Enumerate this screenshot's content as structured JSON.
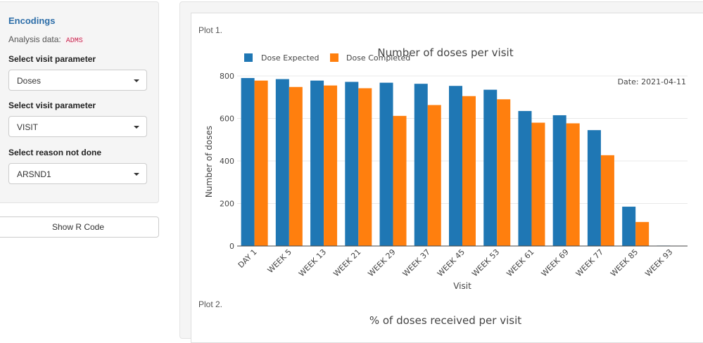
{
  "sidebar": {
    "title": "Encodings",
    "analysis_label": "Analysis data:",
    "analysis_value": "ADMS",
    "fields": [
      {
        "label": "Select visit parameter",
        "value": "Doses"
      },
      {
        "label": "Select visit parameter",
        "value": "VISIT"
      },
      {
        "label": "Select reason not done",
        "value": "ARSND1"
      }
    ],
    "show_code_label": "Show R Code"
  },
  "plots": {
    "plot1_label": "Plot 1.",
    "plot2_label": "Plot 2.",
    "plot2_title": "% of doses received per visit"
  },
  "colors": {
    "expected": "#1f77b4",
    "completed": "#ff7f0e"
  },
  "chart_data": {
    "type": "bar",
    "title": "Number of doses per visit",
    "xlabel": "Visit",
    "ylabel": "Number of doses",
    "annotation": "Date: 2021-04-11",
    "categories": [
      "DAY 1",
      "WEEK 5",
      "WEEK 13",
      "WEEK 21",
      "WEEK 29",
      "WEEK 37",
      "WEEK 45",
      "WEEK 53",
      "WEEK 61",
      "WEEK 69",
      "WEEK 77",
      "WEEK 85",
      "WEEK 93"
    ],
    "series": [
      {
        "name": "Dose Expected",
        "values": [
          790,
          785,
          778,
          772,
          768,
          763,
          753,
          735,
          635,
          615,
          545,
          185,
          2
        ]
      },
      {
        "name": "Dose Completed",
        "values": [
          778,
          748,
          755,
          742,
          612,
          663,
          705,
          690,
          580,
          577,
          427,
          113,
          0
        ]
      }
    ],
    "ylim": [
      0,
      800
    ],
    "yticks": [
      0,
      200,
      400,
      600,
      800
    ],
    "grid": true,
    "legend": "top-left"
  }
}
